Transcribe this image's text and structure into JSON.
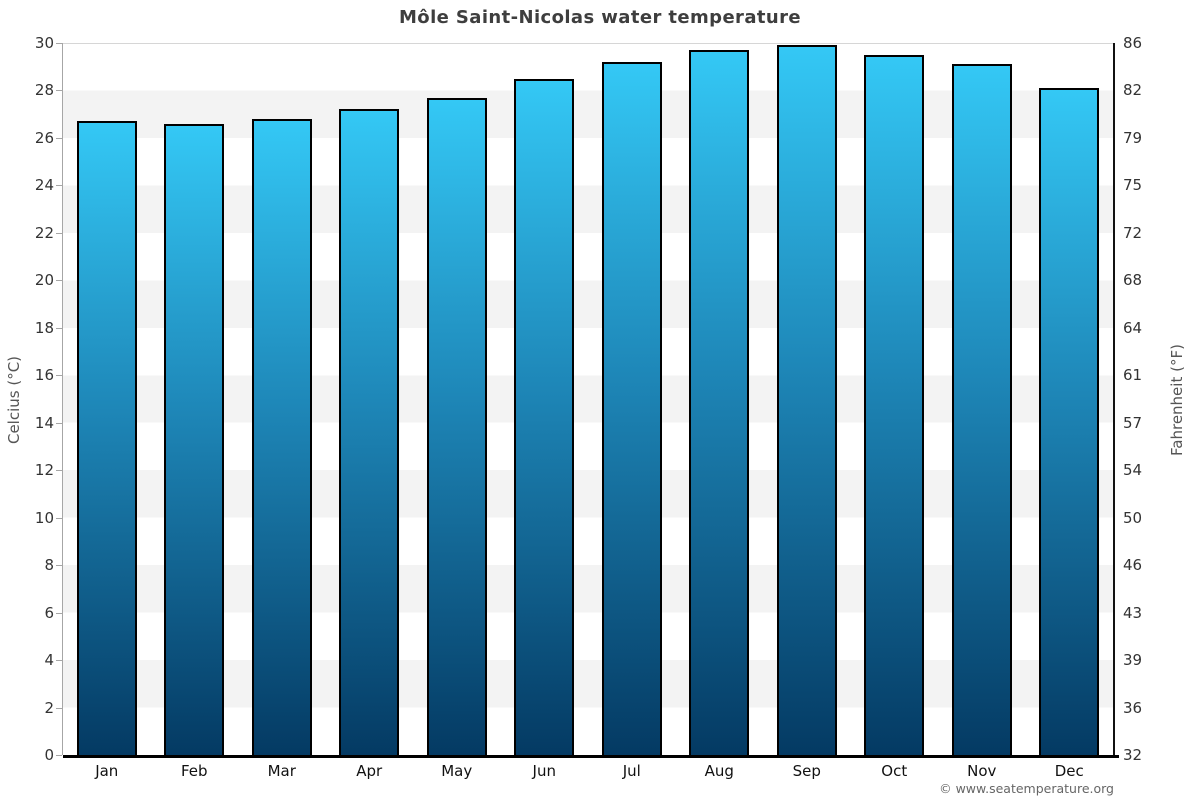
{
  "title": "Môle Saint-Nicolas water temperature",
  "watermark": "© www.seatemperature.org",
  "chart_data": {
    "type": "bar",
    "title": "Môle Saint-Nicolas water temperature",
    "categories": [
      "Jan",
      "Feb",
      "Mar",
      "Apr",
      "May",
      "Jun",
      "Jul",
      "Aug",
      "Sep",
      "Oct",
      "Nov",
      "Dec"
    ],
    "values": [
      26.7,
      26.6,
      26.8,
      27.2,
      27.7,
      28.5,
      29.2,
      29.7,
      29.9,
      29.5,
      29.1,
      28.1
    ],
    "ylabel_left": "Celcius (°C)",
    "ylabel_right": "Fahrenheit (°F)",
    "ylim": [
      0,
      30
    ],
    "y_left_ticks": [
      0,
      2,
      4,
      6,
      8,
      10,
      12,
      14,
      16,
      18,
      20,
      22,
      24,
      26,
      28,
      30
    ],
    "y_right_tick_labels": [
      32,
      36,
      39,
      43,
      46,
      50,
      54,
      57,
      61,
      64,
      68,
      72,
      75,
      79,
      82,
      86
    ],
    "legend": "none",
    "grid": "alternating horizontal bands every 2°C",
    "colors": {
      "bar_gradient_top": "#34c8f5",
      "bar_gradient_mid": "#1e87b8",
      "bar_gradient_bottom": "#043a63",
      "bar_border": "#000000",
      "band_light": "#ffffff",
      "band_dark": "#f3f3f3",
      "left_axis_line": "#a6a6a6",
      "right_axis_line": "#111111",
      "bottom_axis_line": "#000000",
      "top_gridline": "#d6d6d6",
      "title_text": "#3e3e3e",
      "tick_text": "#333333",
      "axis_title_text": "#555555",
      "watermark_text": "#666666"
    }
  }
}
